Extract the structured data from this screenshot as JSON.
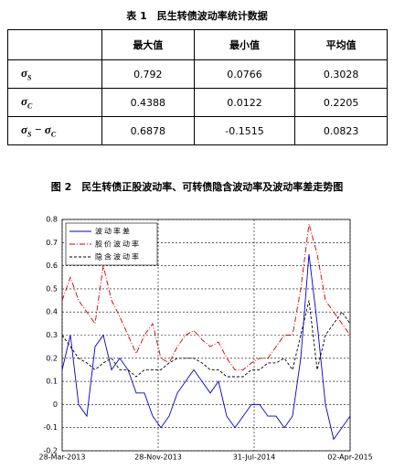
{
  "table": {
    "title": "表 1　民生转债波动率统计数据",
    "header": [
      "最大值",
      "最小值",
      "平均值"
    ],
    "rows": [
      {
        "label": [
          "σ",
          "S"
        ],
        "cells": [
          0.792,
          0.0766,
          0.3028
        ]
      },
      {
        "label": [
          "σ",
          "C"
        ],
        "cells": [
          0.4388,
          0.0122,
          0.2205
        ]
      },
      {
        "label": [
          "σ",
          "S",
          "−",
          "σ",
          "C"
        ],
        "cells": [
          0.6878,
          -0.1515,
          0.0823
        ]
      }
    ]
  },
  "figure_title": "图 2　民生转债正股波动率、可转债隐含波动率及波动率差走势图",
  "chart_data": {
    "type": "line",
    "x": [
      0,
      21,
      42,
      63,
      84,
      105,
      126,
      147,
      168,
      189,
      210,
      231,
      252,
      273,
      294,
      315,
      336,
      357,
      378,
      399,
      420,
      441,
      462,
      483,
      504,
      525,
      546,
      567,
      588,
      609,
      630,
      651,
      672,
      693,
      714,
      735
    ],
    "xlim": [
      0,
      735
    ],
    "xticks": [
      {
        "value": 0,
        "label": "28-Mar-2013"
      },
      {
        "value": 245,
        "label": "28-Nov-2013"
      },
      {
        "value": 490,
        "label": "31-Jul-2014"
      },
      {
        "value": 735,
        "label": "02-Apr-2015"
      }
    ],
    "ylim": [
      -0.2,
      0.8
    ],
    "yticks": [
      -0.2,
      -0.1,
      0,
      0.1,
      0.2,
      0.3,
      0.4,
      0.5,
      0.6,
      0.7,
      0.8
    ],
    "grid": true,
    "legend": "upper left",
    "series": [
      {
        "name": "波动率差",
        "color": "#0000cc",
        "dash": "solid",
        "values": [
          0.15,
          0.3,
          0.0,
          -0.05,
          0.25,
          0.3,
          0.15,
          0.2,
          0.15,
          0.05,
          0.05,
          -0.05,
          -0.1,
          -0.05,
          0.05,
          0.1,
          0.15,
          0.1,
          0.05,
          0.1,
          -0.05,
          -0.1,
          -0.05,
          0.0,
          0.0,
          -0.05,
          -0.05,
          -0.1,
          -0.05,
          0.2,
          0.65,
          0.35,
          0.0,
          -0.15,
          -0.1,
          -0.05
        ]
      },
      {
        "name": "股价波动率",
        "color": "#cc0000",
        "dash": "dashdot",
        "values": [
          0.45,
          0.55,
          0.45,
          0.4,
          0.35,
          0.6,
          0.45,
          0.38,
          0.3,
          0.22,
          0.3,
          0.35,
          0.2,
          0.18,
          0.25,
          0.3,
          0.32,
          0.28,
          0.25,
          0.27,
          0.2,
          0.15,
          0.15,
          0.18,
          0.2,
          0.2,
          0.25,
          0.3,
          0.3,
          0.5,
          0.78,
          0.65,
          0.45,
          0.4,
          0.35,
          0.3
        ]
      },
      {
        "name": "隐含波动率",
        "color": "#000000",
        "dash": "dashed",
        "values": [
          0.3,
          0.25,
          0.2,
          0.18,
          0.15,
          0.18,
          0.2,
          0.15,
          0.15,
          0.12,
          0.15,
          0.15,
          0.15,
          0.18,
          0.2,
          0.2,
          0.2,
          0.18,
          0.15,
          0.15,
          0.12,
          0.12,
          0.12,
          0.15,
          0.15,
          0.18,
          0.18,
          0.2,
          0.15,
          0.3,
          0.45,
          0.15,
          0.3,
          0.35,
          0.4,
          0.35
        ]
      }
    ]
  }
}
